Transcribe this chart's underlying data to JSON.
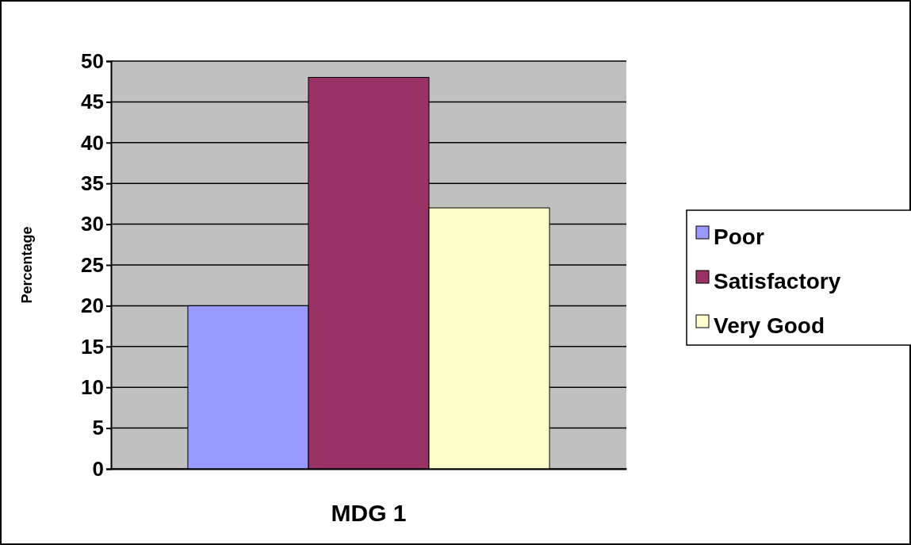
{
  "chart_data": {
    "type": "bar",
    "categories": [
      "MDG 1"
    ],
    "ylabel": "Percentage",
    "series": [
      {
        "name": "Poor",
        "color": "#9999ff",
        "values": [
          20
        ]
      },
      {
        "name": "Satisfactory",
        "color": "#993366",
        "values": [
          48
        ]
      },
      {
        "name": "Very Good",
        "color": "#ffffcc",
        "values": [
          32
        ]
      }
    ],
    "ylim": [
      0,
      50
    ],
    "yticks": [
      0,
      5,
      10,
      15,
      20,
      25,
      30,
      35,
      40,
      45,
      50
    ],
    "grid": "y",
    "legend": "right"
  }
}
